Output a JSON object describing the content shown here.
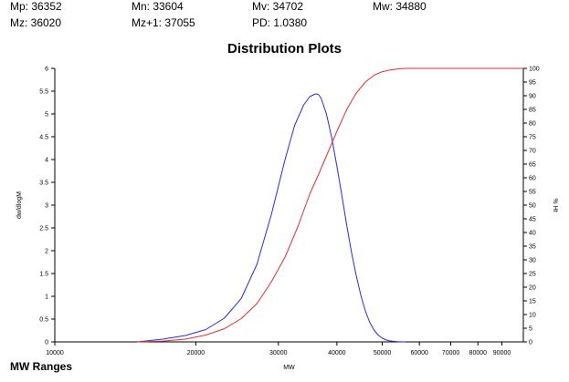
{
  "stats": [
    {
      "label": "Mp",
      "value": "36352"
    },
    {
      "label": "Mn",
      "value": "33604"
    },
    {
      "label": "Mv",
      "value": "34702"
    },
    {
      "label": "Mw",
      "value": "34880"
    },
    {
      "label": "Mz",
      "value": "36020"
    },
    {
      "label": "Mz+1",
      "value": "37055"
    },
    {
      "label": "PD",
      "value": "1.0380"
    }
  ],
  "section_heading": "MW Ranges",
  "chart_data": {
    "type": "line",
    "title": "Distribution Plots",
    "xlabel": "MW",
    "ylabel": "dw/dlogM",
    "y2label": "% Ht",
    "xscale": "log",
    "xlim": [
      10000,
      100000
    ],
    "ylim": [
      0,
      6
    ],
    "y2lim": [
      0,
      100
    ],
    "x_ticks": [
      10000,
      20000,
      30000,
      40000,
      50000,
      60000,
      70000,
      80000,
      90000
    ],
    "x_tick_labels": [
      "10000",
      "20000",
      "30000",
      "40000",
      "50000",
      "60000",
      "70000",
      "80000",
      "90000"
    ],
    "y_ticks": [
      0,
      0.5,
      1,
      1.5,
      2,
      2.5,
      3,
      3.5,
      4,
      4.5,
      5,
      5.5,
      6
    ],
    "y_tick_labels": [
      "0",
      "0.5",
      "1",
      "1.5",
      "2",
      "2.5",
      "3",
      "3.5",
      "4",
      "4.5",
      "5",
      "5.5",
      "6"
    ],
    "y2_ticks": [
      0,
      5,
      10,
      15,
      20,
      25,
      30,
      35,
      40,
      45,
      50,
      55,
      60,
      65,
      70,
      75,
      80,
      85,
      90,
      95,
      100
    ],
    "y2_tick_labels": [
      "0",
      "5",
      "10",
      "15",
      "20",
      "25",
      "30",
      "35",
      "40",
      "45",
      "50",
      "55",
      "60",
      "65",
      "70",
      "75",
      "80",
      "85",
      "90",
      "95",
      "100"
    ],
    "grid": false,
    "series": [
      {
        "axis": "left",
        "color": "#2b2bd9",
        "x": [
          15000,
          17000,
          19000,
          21000,
          23000,
          25000,
          27000,
          29000,
          31000,
          32500,
          34000,
          35000,
          36000,
          36500,
          37000,
          38000,
          39000,
          40000,
          41000,
          42000,
          43000,
          44000,
          45000,
          46000,
          47000,
          48000,
          49000,
          50000,
          51000,
          52000,
          54000,
          56000
        ],
        "y": [
          0,
          0.06,
          0.14,
          0.27,
          0.52,
          0.95,
          1.7,
          2.8,
          4.0,
          4.75,
          5.2,
          5.38,
          5.44,
          5.43,
          5.35,
          5.0,
          4.48,
          3.85,
          3.2,
          2.55,
          1.95,
          1.45,
          1.02,
          0.68,
          0.43,
          0.26,
          0.15,
          0.08,
          0.04,
          0.02,
          0.005,
          0
        ]
      },
      {
        "axis": "right",
        "color": "#e03030",
        "x": [
          15000,
          17000,
          19000,
          21000,
          23000,
          25000,
          27000,
          29000,
          31000,
          33000,
          35000,
          36500,
          38000,
          40000,
          42000,
          44000,
          46000,
          48000,
          50000,
          52000,
          54000,
          56000,
          60000,
          100000
        ],
        "y": [
          0,
          0.3,
          1.0,
          2.5,
          4.8,
          8.5,
          14,
          22,
          31,
          42,
          54,
          61,
          68,
          77,
          85,
          91,
          95,
          97.5,
          98.8,
          99.4,
          99.8,
          100,
          100,
          100
        ]
      }
    ]
  }
}
